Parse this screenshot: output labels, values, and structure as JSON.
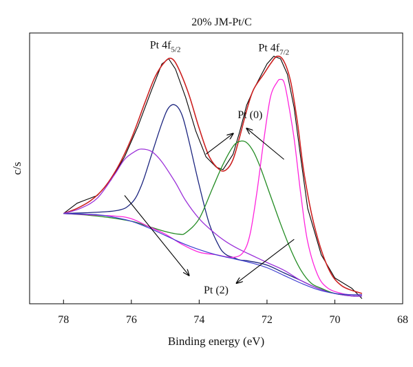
{
  "chart_data": {
    "type": "line",
    "title": "20% JM-Pt/C",
    "xlabel": "Binding energy (eV)",
    "ylabel": "c/s",
    "xlim": [
      79,
      68
    ],
    "ylim": [
      0,
      1.05
    ],
    "x_reversed": true,
    "grid": false,
    "legend": "none",
    "x_ticks": [
      {
        "value": 78,
        "label": "78"
      },
      {
        "value": 76,
        "label": "76"
      },
      {
        "value": 74,
        "label": "74"
      },
      {
        "value": 72,
        "label": "72"
      },
      {
        "value": 70,
        "label": "70"
      },
      {
        "value": 68,
        "label": "68"
      }
    ],
    "peak_labels": [
      {
        "text": "Pt 4f",
        "sub": "5/2",
        "x": 75.0,
        "y": 0.99
      },
      {
        "text": "Pt 4f",
        "sub": "7/2",
        "x": 71.8,
        "y": 0.98
      }
    ],
    "annotations": [
      {
        "text": "Pt (0)",
        "x": 72.5,
        "y": 0.72,
        "arrows": [
          [
            73.8,
            0.58,
            73.0,
            0.66
          ],
          [
            71.5,
            0.56,
            72.6,
            0.68
          ]
        ]
      },
      {
        "text": "Pt (2)",
        "x": 73.5,
        "y": 0.04,
        "arrows": [
          [
            76.2,
            0.42,
            74.3,
            0.11
          ],
          [
            71.2,
            0.25,
            72.9,
            0.08
          ]
        ]
      }
    ],
    "series": [
      {
        "color": "#000000",
        "width": 1.1,
        "x": [
          78.0,
          77.6,
          77.4,
          77.0,
          76.6,
          76.2,
          75.8,
          75.4,
          75.1,
          74.9,
          74.7,
          74.4,
          74.1,
          73.8,
          73.5,
          73.3,
          73.0,
          72.8,
          72.6,
          72.4,
          72.2,
          72.0,
          71.8,
          71.6,
          71.4,
          71.2,
          71.0,
          70.8,
          70.4,
          70.0,
          69.5,
          69.2
        ],
        "y": [
          0.35,
          0.39,
          0.4,
          0.42,
          0.48,
          0.57,
          0.69,
          0.83,
          0.93,
          0.95,
          0.91,
          0.8,
          0.67,
          0.57,
          0.53,
          0.52,
          0.58,
          0.67,
          0.77,
          0.83,
          0.88,
          0.93,
          0.96,
          0.95,
          0.89,
          0.76,
          0.56,
          0.37,
          0.19,
          0.1,
          0.06,
          0.02
        ]
      },
      {
        "color": "#cc2020",
        "width": 1.6,
        "x": [
          78.0,
          77.6,
          77.2,
          76.8,
          76.4,
          76.0,
          75.6,
          75.3,
          75.0,
          74.8,
          74.6,
          74.3,
          74.0,
          73.7,
          73.4,
          73.2,
          73.0,
          72.8,
          72.6,
          72.4,
          72.1,
          71.9,
          71.7,
          71.5,
          71.3,
          71.1,
          70.9,
          70.6,
          70.2,
          69.8,
          69.2
        ],
        "y": [
          0.35,
          0.37,
          0.4,
          0.45,
          0.53,
          0.64,
          0.78,
          0.88,
          0.94,
          0.95,
          0.91,
          0.81,
          0.68,
          0.57,
          0.52,
          0.52,
          0.56,
          0.65,
          0.75,
          0.83,
          0.89,
          0.93,
          0.96,
          0.94,
          0.86,
          0.7,
          0.5,
          0.3,
          0.14,
          0.07,
          0.04
        ]
      },
      {
        "color": "#1a237e",
        "width": 1.3,
        "x": [
          78.0,
          76.5,
          76.0,
          75.7,
          75.4,
          75.1,
          74.9,
          74.7,
          74.5,
          74.3,
          74.0,
          73.7,
          73.4,
          73.2,
          73.0,
          72.8,
          72.5,
          72.0,
          71.5,
          71.0,
          70.5,
          70.0,
          69.5,
          69.2
        ],
        "y": [
          0.35,
          0.36,
          0.39,
          0.46,
          0.58,
          0.7,
          0.76,
          0.77,
          0.73,
          0.63,
          0.46,
          0.31,
          0.22,
          0.19,
          0.18,
          0.17,
          0.165,
          0.15,
          0.12,
          0.09,
          0.06,
          0.04,
          0.03,
          0.03
        ]
      },
      {
        "color": "#9b30d9",
        "width": 1.3,
        "x": [
          78.0,
          77.5,
          77.0,
          76.5,
          76.2,
          75.9,
          75.7,
          75.4,
          75.1,
          74.7,
          74.4,
          74.0,
          73.6,
          73.2,
          72.8,
          72.4,
          72.0,
          71.5,
          71.0,
          70.5,
          70.0,
          69.5,
          69.2
        ],
        "y": [
          0.35,
          0.37,
          0.41,
          0.5,
          0.56,
          0.59,
          0.6,
          0.59,
          0.55,
          0.47,
          0.4,
          0.33,
          0.28,
          0.24,
          0.21,
          0.185,
          0.16,
          0.13,
          0.09,
          0.06,
          0.04,
          0.03,
          0.03
        ]
      },
      {
        "color": "#228b22",
        "width": 1.3,
        "x": [
          78.0,
          77.0,
          76.0,
          75.5,
          75.0,
          74.6,
          74.4,
          74.0,
          73.6,
          73.3,
          73.0,
          72.8,
          72.6,
          72.4,
          72.2,
          71.9,
          71.6,
          71.3,
          71.0,
          70.7,
          70.4,
          70.0,
          69.5,
          69.2
        ],
        "y": [
          0.35,
          0.34,
          0.32,
          0.3,
          0.28,
          0.27,
          0.275,
          0.33,
          0.45,
          0.54,
          0.61,
          0.63,
          0.625,
          0.59,
          0.53,
          0.42,
          0.31,
          0.21,
          0.13,
          0.08,
          0.06,
          0.04,
          0.035,
          0.035
        ]
      },
      {
        "color": "#ff22dd",
        "width": 1.3,
        "x": [
          78.0,
          76.5,
          76.0,
          75.5,
          75.0,
          74.5,
          74.0,
          73.5,
          73.0,
          72.7,
          72.5,
          72.3,
          72.1,
          71.9,
          71.7,
          71.6,
          71.5,
          71.4,
          71.2,
          71.0,
          70.8,
          70.5,
          70.2,
          69.8,
          69.5,
          69.2
        ],
        "y": [
          0.35,
          0.34,
          0.33,
          0.3,
          0.27,
          0.23,
          0.2,
          0.19,
          0.18,
          0.2,
          0.27,
          0.43,
          0.63,
          0.8,
          0.86,
          0.87,
          0.86,
          0.8,
          0.64,
          0.42,
          0.24,
          0.11,
          0.06,
          0.04,
          0.035,
          0.035
        ]
      },
      {
        "color": "#3a3ad0",
        "width": 1.2,
        "x": [
          78.0,
          77.0,
          76.5,
          76.0,
          75.5,
          75.0,
          74.5,
          74.0,
          73.5,
          73.0,
          72.5,
          72.0,
          71.5,
          71.0,
          70.5,
          70.0,
          69.5,
          69.2
        ],
        "y": [
          0.35,
          0.345,
          0.335,
          0.32,
          0.295,
          0.265,
          0.235,
          0.21,
          0.19,
          0.175,
          0.16,
          0.14,
          0.11,
          0.08,
          0.055,
          0.04,
          0.035,
          0.035
        ]
      }
    ]
  }
}
